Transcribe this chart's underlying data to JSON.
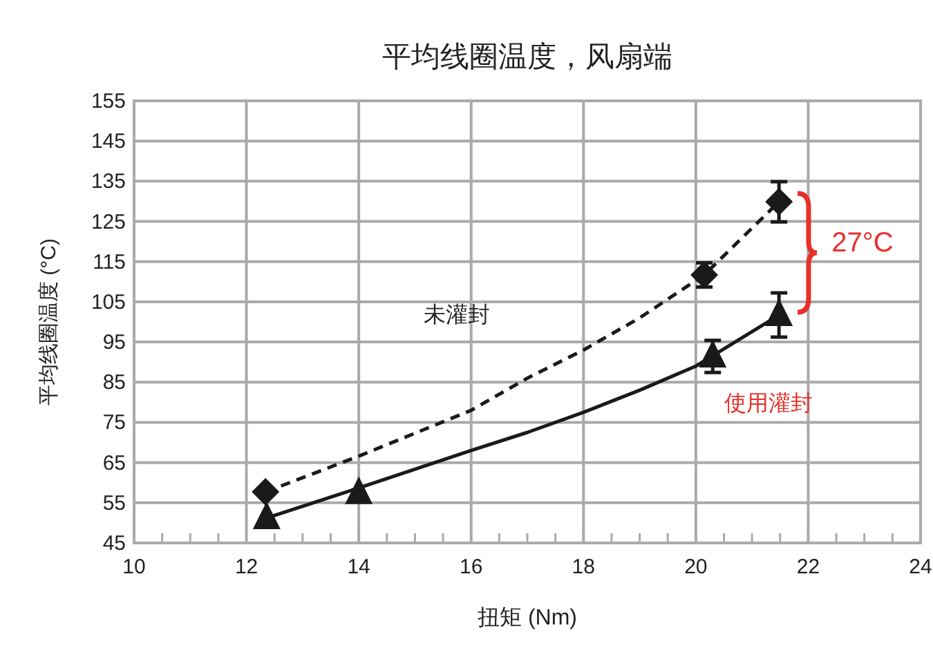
{
  "chart_data": {
    "type": "scatter",
    "title": "平均线圈温度，风扇端",
    "xlabel": "扭矩 (Nm)",
    "ylabel": "平均线圈温度 (°C)",
    "xlim": [
      10,
      24
    ],
    "xticks": [
      10,
      12,
      14,
      16,
      18,
      20,
      22,
      24
    ],
    "ylim": [
      45,
      155
    ],
    "yticks": [
      45,
      55,
      65,
      75,
      85,
      95,
      105,
      115,
      125,
      135,
      145,
      155
    ],
    "grid": true,
    "series": [
      {
        "type": "line",
        "color": "#1a1a1a",
        "line_style": "dashed",
        "marker": "none",
        "x": [
          12.34,
          14,
          16,
          17,
          18,
          19,
          20.15,
          21.48
        ],
        "values": [
          57.7,
          66.6,
          78,
          86,
          93,
          101,
          111.7,
          129.9
        ]
      },
      {
        "type": "line",
        "color": "#1a1a1a",
        "line_style": "solid",
        "marker": "none",
        "x": [
          12.36,
          14,
          16,
          17,
          18,
          19,
          20,
          21.48
        ],
        "values": [
          51.2,
          58.7,
          68,
          72.5,
          77.5,
          83,
          89,
          101.7
        ]
      },
      {
        "color": "#1a1a1a",
        "marker": "diamond",
        "x": [
          12.34,
          20.15,
          21.48
        ],
        "values": [
          57.7,
          111.7,
          129.9
        ],
        "errors": [
          null,
          3,
          5
        ]
      },
      {
        "color": "#1a1a1a",
        "marker": "triangle",
        "x": [
          12.36,
          14,
          20.3,
          21.48
        ],
        "values": [
          51.2,
          57.4,
          91.4,
          101.7
        ],
        "errors": [
          null,
          null,
          4,
          5.5
        ]
      }
    ],
    "annotations": [
      "未灌封",
      "使用灌封",
      "27°C"
    ]
  }
}
